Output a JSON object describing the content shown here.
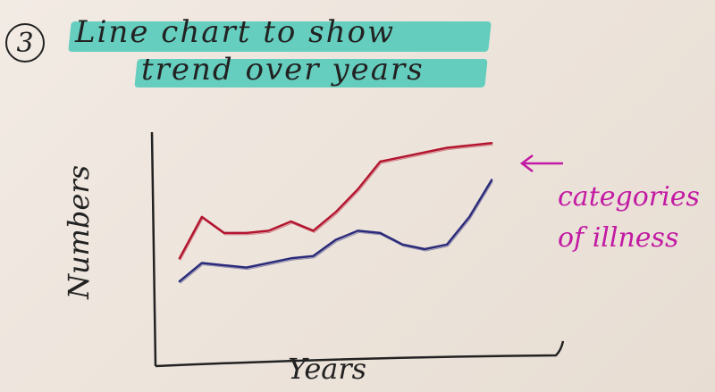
{
  "step_number": "3",
  "title_line1": "Line chart to show",
  "title_line2": "trend over years",
  "annotation_line1": "categories",
  "annotation_line2": "of illness",
  "colors": {
    "series_red": "#b3142e",
    "series_blue": "#2a2a7a",
    "annotation": "#c21aa3",
    "highlight": "#4cc9b8"
  },
  "chart_data": {
    "type": "line",
    "title": "",
    "xlabel": "Years",
    "ylabel": "Numbers",
    "x": [
      1,
      2,
      3,
      4,
      5,
      6,
      7,
      8,
      9,
      10,
      11,
      12,
      13,
      14,
      15
    ],
    "xlim": [
      0,
      17
    ],
    "ylim": [
      0,
      100
    ],
    "grid": false,
    "series": [
      {
        "color": "#b3142e",
        "values": [
          46,
          64,
          57,
          57,
          58,
          62,
          58,
          66,
          76,
          88,
          90,
          92,
          94,
          95,
          96
        ]
      },
      {
        "color": "#2a2a7a",
        "values": [
          36,
          44,
          43,
          42,
          44,
          46,
          47,
          54,
          58,
          57,
          52,
          50,
          52,
          64,
          80
        ]
      }
    ]
  }
}
